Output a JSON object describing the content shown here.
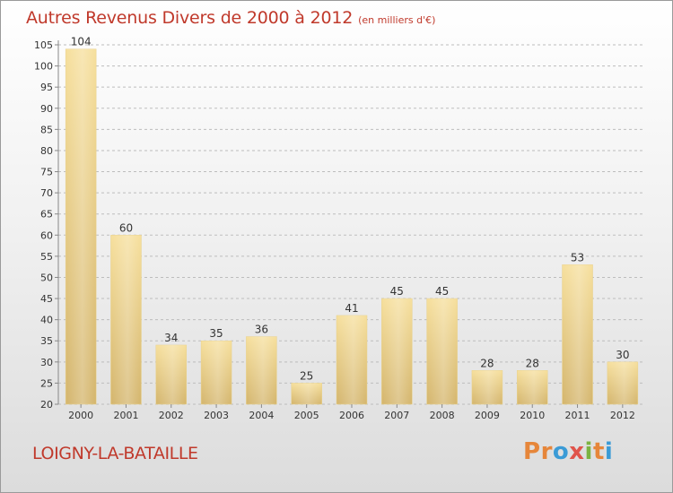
{
  "header": {
    "title": "Autres Revenus Divers de 2000 à 2012",
    "unit": "(en milliers d'€)"
  },
  "footer": {
    "place": "LOIGNY-LA-BATAILLE",
    "logo_text": "Proxiti"
  },
  "colors": {
    "title": "#c0392b",
    "bar_light": "#f5dc95",
    "bar_dark": "#d9bc73",
    "logo_letters": [
      "#e6863a",
      "#e6863a",
      "#3b9bd6",
      "#e0544b",
      "#7cb342",
      "#e6863a",
      "#3b9bd6"
    ]
  },
  "chart_data": {
    "type": "bar",
    "categories": [
      "2000",
      "2001",
      "2002",
      "2003",
      "2004",
      "2005",
      "2006",
      "2007",
      "2008",
      "2009",
      "2010",
      "2011",
      "2012"
    ],
    "values": [
      104,
      60,
      34,
      35,
      36,
      25,
      41,
      45,
      45,
      28,
      28,
      53,
      30
    ],
    "ylim": [
      20,
      105
    ],
    "yticks": [
      20,
      25,
      30,
      35,
      40,
      45,
      50,
      55,
      60,
      65,
      70,
      75,
      80,
      85,
      90,
      95,
      100,
      105
    ],
    "grid": true
  }
}
